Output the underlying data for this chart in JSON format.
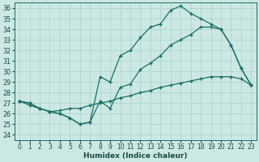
{
  "xlabel": "Humidex (Indice chaleur)",
  "bg_color": "#cce8e4",
  "line_color": "#1a6e64",
  "grid_color": "#afd4cf",
  "xlim": [
    -0.5,
    23.5
  ],
  "ylim": [
    23.5,
    36.5
  ],
  "xticks": [
    0,
    1,
    2,
    3,
    4,
    5,
    6,
    7,
    8,
    9,
    10,
    11,
    12,
    13,
    14,
    15,
    16,
    17,
    18,
    19,
    20,
    21,
    22,
    23
  ],
  "yticks": [
    24,
    25,
    26,
    27,
    28,
    29,
    30,
    31,
    32,
    33,
    34,
    35,
    36
  ],
  "curve_peak_x": [
    0,
    1,
    2,
    3,
    4,
    5,
    6,
    7,
    8,
    9,
    10,
    11,
    12,
    13,
    14,
    15,
    16,
    17,
    18,
    19,
    20,
    21,
    22,
    23
  ],
  "curve_peak_y": [
    27.2,
    27.0,
    26.5,
    26.2,
    26.0,
    25.6,
    25.0,
    25.2,
    29.5,
    29.0,
    31.5,
    32.0,
    33.2,
    34.2,
    34.5,
    35.8,
    36.2,
    35.5,
    35.0,
    34.5,
    34.0,
    32.5,
    30.3,
    28.7
  ],
  "curve_mid_x": [
    0,
    1,
    2,
    3,
    4,
    5,
    6,
    7,
    8,
    9,
    10,
    11,
    12,
    13,
    14,
    15,
    16,
    17,
    18,
    19,
    20,
    21,
    22,
    23
  ],
  "curve_mid_y": [
    27.2,
    27.0,
    26.5,
    26.2,
    26.0,
    25.6,
    25.0,
    25.2,
    27.2,
    26.5,
    28.5,
    28.8,
    30.2,
    30.8,
    31.5,
    32.5,
    33.0,
    33.5,
    34.2,
    34.2,
    34.0,
    32.5,
    30.3,
    28.7
  ],
  "curve_flat_x": [
    0,
    1,
    2,
    3,
    4,
    5,
    6,
    7,
    8,
    9,
    10,
    11,
    12,
    13,
    14,
    15,
    16,
    17,
    18,
    19,
    20,
    21,
    22,
    23
  ],
  "curve_flat_y": [
    27.2,
    26.8,
    26.5,
    26.2,
    26.3,
    26.5,
    26.5,
    26.8,
    27.0,
    27.2,
    27.5,
    27.7,
    28.0,
    28.2,
    28.5,
    28.7,
    28.9,
    29.1,
    29.3,
    29.5,
    29.5,
    29.5,
    29.3,
    28.7
  ]
}
